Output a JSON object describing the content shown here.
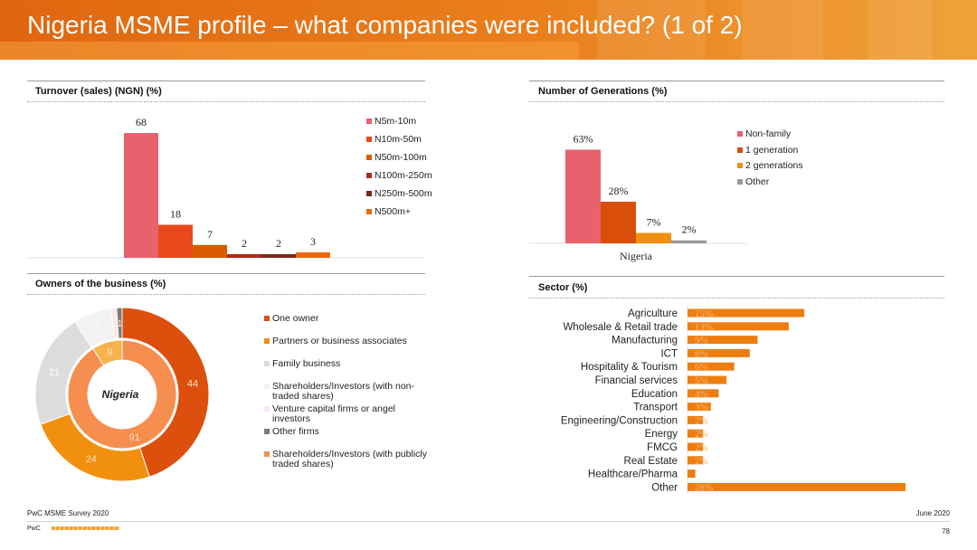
{
  "title": "Nigeria MSME profile – what companies were included? (1 of 2)",
  "footer": {
    "source": "PwC MSME Survey 2020",
    "date": "June 2020",
    "brand": "PwC",
    "page": "78"
  },
  "turnover": {
    "heading": "Turnover (sales) (NGN) (%)",
    "chart_data": {
      "type": "bar",
      "categories": [
        "N5m-10m",
        "N10m-50m",
        "N50m-100m",
        "N100m-250m",
        "N250m-500m",
        "N500m+"
      ],
      "values": [
        68,
        18,
        7,
        2,
        2,
        3
      ],
      "labels": [
        "68",
        "18",
        "7",
        "2",
        "2",
        "3"
      ],
      "colors": [
        "#e8626e",
        "#e84a1c",
        "#d95a00",
        "#b0281a",
        "#7a2a1a",
        "#ea6a10"
      ],
      "legend": [
        "N5m-10m",
        "N10m-50m",
        "N50m-100m",
        "N100m-250m",
        "N250m-500m",
        "N500m+"
      ],
      "ylim": [
        0,
        70
      ]
    }
  },
  "generations": {
    "heading": "Number of Generations (%)",
    "chart_data": {
      "type": "bar",
      "categories": [
        "Nigeria"
      ],
      "series": [
        {
          "name": "Non-family",
          "values": [
            63
          ],
          "label": "63%",
          "color": "#e8626e"
        },
        {
          "name": "1 generation",
          "values": [
            28
          ],
          "label": "28%",
          "color": "#d94f0a"
        },
        {
          "name": "2 generations",
          "values": [
            7
          ],
          "label": "7%",
          "color": "#f0900e"
        },
        {
          "name": "Other",
          "values": [
            2
          ],
          "label": "2%",
          "color": "#9a9a9a"
        }
      ],
      "ylim": [
        0,
        70
      ]
    }
  },
  "owners": {
    "heading": "Owners of the business (%)",
    "center_label": "Nigeria",
    "chart_data": [
      {
        "type": "pie",
        "ring": "outer",
        "categories": [
          "One owner",
          "Partners or business associates",
          "Family business",
          "Shareholders/Investors (with non-traded shares)",
          "Venture capital firms or angel investors",
          "Other firms"
        ],
        "values": [
          44,
          24,
          21,
          7,
          1,
          1
        ],
        "labels": [
          "44",
          "24",
          "21",
          "7",
          "",
          "1"
        ],
        "colors": [
          "#dc4f0c",
          "#f0900e",
          "#dcdcdc",
          "#f2f2f2",
          "#fbe6e6",
          "#7a7a7a"
        ]
      },
      {
        "type": "pie",
        "ring": "inner",
        "categories": [
          "Shareholders/Investors (with publicly traded shares)",
          "Shareholders/Investors (with non-traded shares)"
        ],
        "values": [
          91,
          9
        ],
        "labels": [
          "91",
          "9"
        ],
        "colors": [
          "#f58e4e",
          "#f7b24e"
        ]
      }
    ],
    "legend": [
      {
        "label": "One owner",
        "color": "#dc4f0c"
      },
      {
        "label": "Partners or business associates",
        "color": "#f0900e"
      },
      {
        "label": "Family business",
        "color": "#dcdcdc"
      },
      {
        "label": "Shareholders/Investors (with non-",
        "label2": "traded shares)",
        "color": "#f2f2f2"
      },
      {
        "label": "Venture capital firms or angel",
        "label2": "investors",
        "color": "#fbe6e6"
      },
      {
        "label": "Other firms",
        "color": "#7a7a7a"
      },
      {
        "label": "Shareholders/Investors (with publicly",
        "label2": "traded shares)",
        "color": "#f58e4e"
      }
    ]
  },
  "sector": {
    "heading": "Sector (%)",
    "chart_data": {
      "type": "bar",
      "orientation": "horizontal",
      "categories": [
        "Agriculture",
        "Wholesale & Retail trade",
        "Manufacturing",
        "ICT",
        "Hospitality & Tourism",
        "Financial services",
        "Education",
        "Transport",
        "Engineering/Construction",
        "Energy",
        "FMCG",
        "Real Estate",
        "Healthcare/Pharma",
        "Other"
      ],
      "values": [
        15,
        13,
        9,
        8,
        6,
        5,
        4,
        3,
        2,
        2,
        2,
        2,
        1,
        28
      ],
      "labels": [
        "15%",
        "13%",
        "9%",
        "8%",
        "6%",
        "5%",
        "4%",
        "3%",
        "2%",
        "2%",
        "2%",
        "2%",
        "",
        "28%"
      ],
      "color": "#ee7d10",
      "xlim": [
        0,
        28
      ]
    }
  }
}
